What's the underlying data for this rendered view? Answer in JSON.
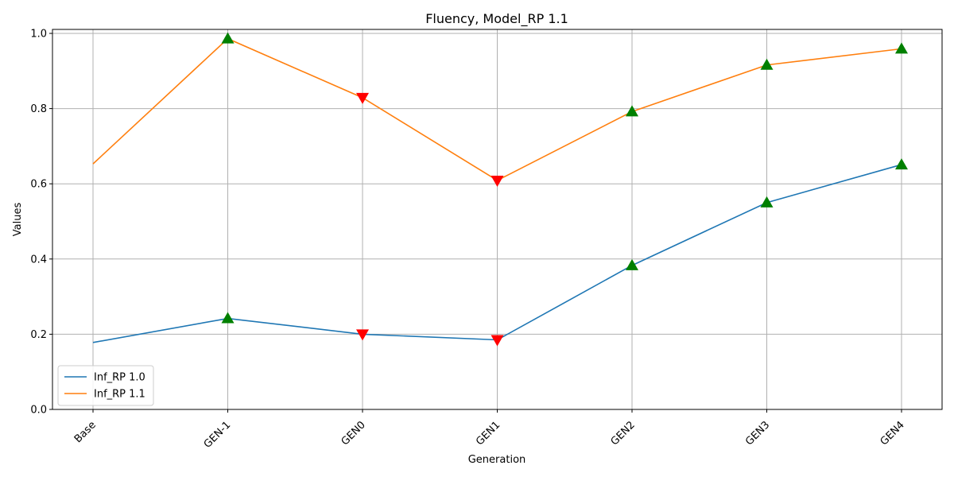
{
  "chart_data": {
    "type": "line",
    "title": "Fluency, Model_RP 1.1",
    "xlabel": "Generation",
    "ylabel": "Values",
    "categories": [
      "Base",
      "GEN-1",
      "GEN0",
      "GEN1",
      "GEN2",
      "GEN3",
      "GEN4"
    ],
    "ylim": [
      0,
      1.0
    ],
    "yticks": [
      0.0,
      0.2,
      0.4,
      0.6,
      0.8,
      1.0
    ],
    "ytick_labels": [
      "0.0",
      "0.2",
      "0.4",
      "0.6",
      "0.8",
      "1.0"
    ],
    "grid": true,
    "legend_position": "lower-left",
    "series": [
      {
        "name": "Inf_RP 1.0",
        "color": "#1f77b4",
        "values": [
          0.178,
          0.242,
          0.2,
          0.185,
          0.383,
          0.55,
          0.651
        ]
      },
      {
        "name": "Inf_RP 1.1",
        "color": "#ff7f0e",
        "values": [
          0.653,
          0.986,
          0.829,
          0.609,
          0.792,
          0.916,
          0.959
        ]
      }
    ],
    "markers": {
      "up_color": "#008000",
      "down_color": "#ff0000",
      "up_meaning": "increase vs previous generation",
      "down_meaning": "decrease vs previous generation"
    }
  }
}
